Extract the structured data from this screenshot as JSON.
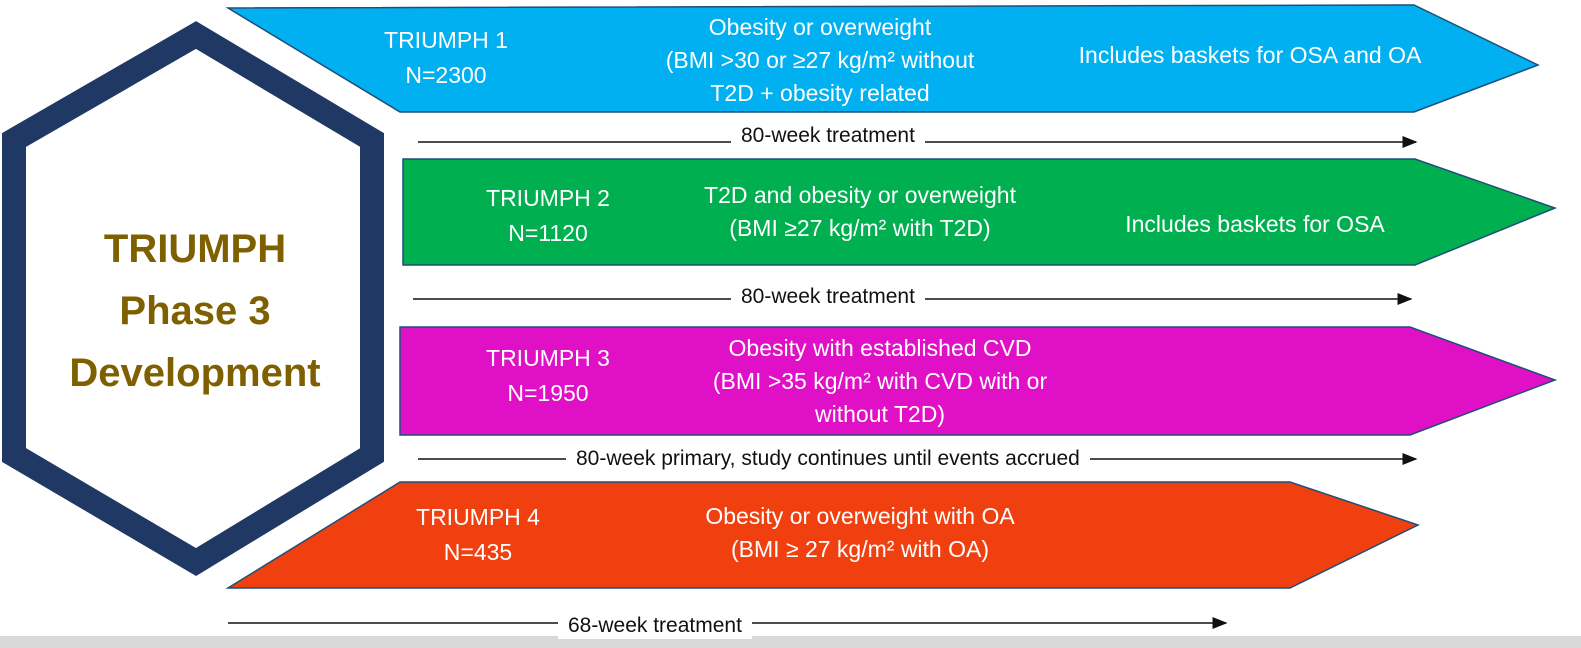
{
  "colors": {
    "hex_border": "#203864",
    "hex_text": "#7f6000",
    "trial1": "#00b0f0",
    "trial2": "#00b050",
    "trial3": "#e010c6",
    "trial4": "#f04010",
    "arrow_line": "#111111"
  },
  "hexagon": {
    "title_lines": [
      "TRIUMPH",
      "Phase 3",
      "Development"
    ]
  },
  "trials": [
    {
      "name": "TRIUMPH 1",
      "n": "N=2300",
      "population": [
        "Obesity or overweight",
        "(BMI >30 or ≥27 kg/m² without",
        "T2D + obesity related"
      ],
      "baskets": "Includes baskets for OSA and OA",
      "timeline": "80-week treatment"
    },
    {
      "name": "TRIUMPH 2",
      "n": "N=1120",
      "population": [
        "T2D and obesity or overweight",
        "(BMI ≥27 kg/m² with T2D)"
      ],
      "baskets": "Includes baskets for OSA",
      "timeline": "80-week treatment"
    },
    {
      "name": "TRIUMPH 3",
      "n": "N=1950",
      "population": [
        "Obesity with established CVD",
        "(BMI >35 kg/m² with CVD with or",
        "without T2D)"
      ],
      "baskets": "",
      "timeline": "80-week primary, study continues until events accrued"
    },
    {
      "name": "TRIUMPH 4",
      "n": "N=435",
      "population": [
        "Obesity or overweight with OA",
        "(BMI ≥ 27 kg/m² with OA)"
      ],
      "baskets": "",
      "timeline": "68-week treatment"
    }
  ]
}
